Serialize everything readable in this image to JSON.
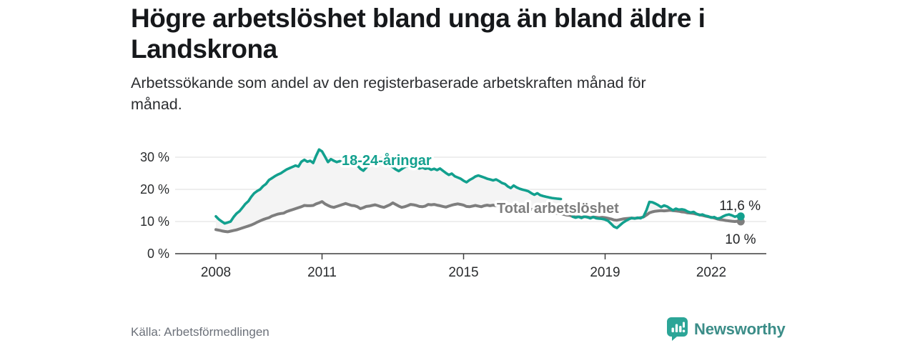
{
  "header": {
    "title_line1": "Högre arbetslöshet bland unga än bland äldre i",
    "title_line2": "Landskrona",
    "subtitle_line1": "Arbetssökande som andel av den registerbaserade arbetskraften månad för",
    "subtitle_line2": "månad."
  },
  "colors": {
    "accent_teal": "#12a08e",
    "line_gray": "#7e7e7e",
    "fill_between": "#f4f4f4",
    "grid": "#e3e3e3",
    "axis": "#3f3f3f",
    "tick_text": "#2a2c2e",
    "brand_teal": "#2ca597",
    "brand_text_teal": "#3b8d88"
  },
  "chart_data": {
    "type": "line",
    "title": "Högre arbetslöshet bland unga än bland äldre i Landskrona",
    "subtitle": "Arbetssökande som andel av den registerbaserade arbetskraften månad för månad.",
    "unit": "%",
    "x_start": "2008-01",
    "x_step_months": 1,
    "x_end": "2022-11",
    "xticks": [
      2008,
      2011,
      2015,
      2019,
      2022
    ],
    "yticks": [
      "0 %",
      "10 %",
      "20 %",
      "30 %"
    ],
    "ytick_values": [
      0,
      10,
      20,
      30
    ],
    "ylim": [
      0,
      34
    ],
    "grid": "horizontal",
    "fill_between_series": true,
    "series": [
      {
        "name": "18-24-åringar",
        "color": "#12a08e",
        "end_label": "11,6 %",
        "end_value": 11.6,
        "values": [
          11.6,
          10.7,
          10.0,
          9.4,
          9.7,
          10.0,
          11.4,
          12.5,
          13.2,
          14.3,
          15.5,
          16.3,
          17.7,
          18.8,
          19.5,
          20.0,
          21.0,
          21.7,
          22.9,
          23.5,
          24.1,
          24.6,
          25.0,
          25.6,
          26.2,
          26.6,
          27.0,
          27.4,
          27.1,
          28.6,
          29.2,
          28.6,
          28.9,
          28.2,
          30.5,
          32.4,
          31.8,
          30.2,
          28.5,
          29.4,
          28.9,
          28.5,
          28.8,
          28.3,
          28.8,
          28.3,
          28.8,
          28.0,
          27.4,
          26.4,
          25.8,
          26.8,
          27.6,
          28.3,
          28.6,
          28.2,
          28.5,
          28.0,
          27.7,
          27.4,
          26.9,
          26.2,
          25.7,
          26.3,
          26.9,
          27.2,
          26.8,
          27.1,
          26.8,
          26.5,
          26.8,
          26.4,
          26.6,
          26.1,
          26.4,
          26.0,
          26.5,
          25.8,
          25.1,
          24.5,
          24.9,
          24.1,
          23.7,
          23.3,
          22.7,
          22.2,
          22.9,
          23.4,
          24.0,
          24.3,
          24.0,
          23.7,
          23.3,
          23.1,
          22.8,
          23.1,
          22.6,
          22.0,
          21.7,
          20.9,
          20.4,
          21.2,
          20.6,
          20.2,
          19.9,
          19.7,
          19.4,
          18.8,
          18.3,
          18.8,
          18.2,
          17.9,
          17.7,
          17.5,
          17.3,
          17.2,
          17.1,
          17.0,
          null,
          null,
          null,
          11.5,
          11.2,
          11.5,
          11.1,
          11.6,
          11.3,
          11.0,
          11.4,
          11.0,
          10.9,
          10.8,
          10.6,
          10.2,
          9.3,
          8.4,
          8.0,
          8.8,
          9.6,
          10.2,
          10.7,
          11.1,
          10.9,
          11.2,
          11.0,
          11.5,
          13.5,
          16.1,
          16.0,
          15.6,
          15.1,
          14.5,
          15.0,
          14.7,
          14.1,
          13.5,
          14.0,
          13.7,
          13.8,
          13.6,
          13.1,
          12.8,
          13.0,
          12.4,
          12.0,
          12.2,
          11.8,
          11.6,
          11.2,
          11.4,
          10.9,
          11.1,
          11.6,
          12.0,
          12.2,
          11.9,
          11.5,
          11.8,
          11.6
        ]
      },
      {
        "name": "Total arbetslöshet",
        "color": "#7e7e7e",
        "end_label": "10 %",
        "end_value": 10.0,
        "values": [
          7.5,
          7.3,
          7.1,
          6.9,
          6.8,
          7.0,
          7.2,
          7.4,
          7.7,
          8.0,
          8.3,
          8.6,
          8.9,
          9.3,
          9.8,
          10.2,
          10.6,
          10.9,
          11.2,
          11.7,
          12.0,
          12.3,
          12.5,
          12.6,
          13.1,
          13.4,
          13.7,
          14.0,
          14.3,
          14.6,
          15.0,
          14.9,
          14.9,
          15.0,
          15.5,
          15.8,
          16.2,
          15.5,
          15.0,
          14.6,
          14.4,
          14.7,
          15.0,
          15.3,
          15.6,
          15.3,
          15.0,
          14.9,
          14.6,
          14.0,
          14.3,
          14.7,
          14.8,
          15.0,
          15.2,
          14.9,
          14.6,
          14.4,
          14.8,
          15.2,
          15.8,
          15.3,
          14.8,
          14.4,
          14.6,
          14.9,
          15.3,
          15.2,
          15.0,
          14.7,
          14.6,
          14.8,
          15.3,
          15.2,
          15.3,
          15.1,
          14.9,
          14.7,
          14.5,
          14.8,
          15.1,
          15.3,
          15.5,
          15.3,
          15.1,
          14.7,
          14.6,
          14.8,
          15.0,
          14.8,
          14.6,
          14.9,
          15.1,
          14.9,
          15.1,
          14.9,
          15.0,
          14.9,
          14.8,
          14.7,
          14.6,
          14.5,
          14.4,
          14.3,
          14.2,
          14.1,
          14.0,
          13.8,
          13.7,
          13.5,
          13.4,
          13.3,
          13.1,
          13.0,
          12.9,
          12.7,
          12.5,
          12.4,
          12.2,
          12.0,
          11.9,
          11.6,
          11.4,
          11.5,
          11.3,
          11.5,
          11.4,
          11.2,
          11.4,
          11.3,
          11.2,
          11.3,
          11.2,
          11.0,
          10.8,
          10.5,
          10.4,
          10.6,
          10.8,
          10.9,
          11.0,
          11.1,
          11.0,
          11.1,
          11.2,
          11.4,
          12.0,
          12.7,
          13.0,
          13.2,
          13.3,
          13.4,
          13.3,
          13.4,
          13.5,
          13.4,
          13.3,
          13.2,
          13.0,
          12.9,
          12.7,
          12.6,
          12.5,
          12.3,
          12.1,
          11.9,
          11.7,
          11.5,
          11.3,
          11.1,
          10.8,
          10.6,
          10.5,
          10.3,
          10.2,
          10.1,
          10.0,
          10.1,
          10.0
        ]
      }
    ]
  },
  "footer": {
    "source": "Källa: Arbetsförmedlingen",
    "brand_name": "Newsworthy"
  }
}
